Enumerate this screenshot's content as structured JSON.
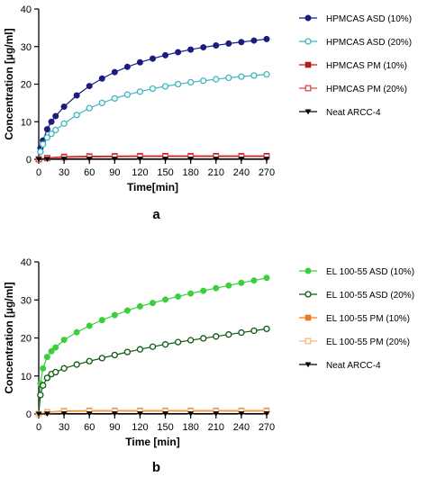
{
  "chart_data": [
    {
      "type": "line",
      "panel_label": "a",
      "xlabel": "Time[min]",
      "ylabel": "Concentration [µg/ml]",
      "xlim": [
        0,
        270
      ],
      "ylim": [
        0,
        40
      ],
      "xticks": [
        0,
        30,
        60,
        90,
        120,
        150,
        180,
        210,
        240,
        270
      ],
      "yticks": [
        0,
        10,
        20,
        30,
        40
      ],
      "grid": false,
      "legend": "right",
      "series": [
        {
          "name": "HPMCAS ASD (10%)",
          "color": "#1c1c80",
          "marker": "circle-filled",
          "x": [
            0,
            2,
            5,
            10,
            15,
            20,
            30,
            45,
            60,
            75,
            90,
            105,
            120,
            135,
            150,
            165,
            180,
            195,
            210,
            225,
            240,
            255,
            270
          ],
          "y": [
            0,
            3,
            5,
            8,
            10,
            11.5,
            14,
            17,
            19.5,
            21.5,
            23.2,
            24.6,
            25.8,
            26.8,
            27.7,
            28.5,
            29.2,
            29.8,
            30.3,
            30.8,
            31.2,
            31.6,
            32
          ]
        },
        {
          "name": "HPMCAS ASD (20%)",
          "color": "#3fb7c1",
          "marker": "circle-open",
          "x": [
            0,
            2,
            5,
            10,
            15,
            20,
            30,
            45,
            60,
            75,
            90,
            105,
            120,
            135,
            150,
            165,
            180,
            195,
            210,
            225,
            240,
            255,
            270
          ],
          "y": [
            0,
            2,
            4,
            5.8,
            6.8,
            7.8,
            9.5,
            11.8,
            13.6,
            15,
            16.2,
            17.2,
            18,
            18.8,
            19.4,
            20,
            20.5,
            20.9,
            21.3,
            21.7,
            22,
            22.3,
            22.6
          ]
        },
        {
          "name": "HPMCAS PM (10%)",
          "color": "#b01c1c",
          "marker": "square-filled",
          "x": [
            0,
            10,
            30,
            60,
            90,
            120,
            150,
            180,
            210,
            240,
            270
          ],
          "y": [
            0,
            0.4,
            0.7,
            0.8,
            0.85,
            0.9,
            0.9,
            0.9,
            0.9,
            0.9,
            0.9
          ]
        },
        {
          "name": "HPMCAS PM (20%)",
          "color": "#e04848",
          "marker": "square-open",
          "x": [
            0,
            10,
            30,
            60,
            90,
            120,
            150,
            180,
            210,
            240,
            270
          ],
          "y": [
            0,
            0.3,
            0.5,
            0.6,
            0.65,
            0.7,
            0.7,
            0.7,
            0.7,
            0.7,
            0.7
          ]
        },
        {
          "name": "Neat ARCC-4",
          "color": "#000000",
          "marker": "triangle-down",
          "x": [
            0,
            10,
            30,
            60,
            90,
            120,
            150,
            180,
            210,
            240,
            270
          ],
          "y": [
            0,
            0.05,
            0.1,
            0.1,
            0.1,
            0.1,
            0.1,
            0.1,
            0.1,
            0.1,
            0.1
          ]
        }
      ]
    },
    {
      "type": "line",
      "panel_label": "b",
      "xlabel": "Time [min]",
      "ylabel": "Concentration [µg/ml]",
      "xlim": [
        0,
        270
      ],
      "ylim": [
        0,
        40
      ],
      "xticks": [
        0,
        30,
        60,
        90,
        120,
        150,
        180,
        210,
        240,
        270
      ],
      "yticks": [
        0,
        10,
        20,
        30,
        40
      ],
      "grid": false,
      "legend": "right",
      "series": [
        {
          "name": "EL 100-55 ASD (10%)",
          "color": "#3ccf3c",
          "marker": "circle-filled",
          "x": [
            0,
            2,
            5,
            10,
            15,
            20,
            30,
            45,
            60,
            75,
            90,
            105,
            120,
            135,
            150,
            165,
            180,
            195,
            210,
            225,
            240,
            255,
            270
          ],
          "y": [
            0,
            8,
            12,
            15,
            16.5,
            17.5,
            19.5,
            21.5,
            23.2,
            24.7,
            26,
            27.2,
            28.3,
            29.2,
            30.1,
            30.9,
            31.7,
            32.4,
            33.1,
            33.8,
            34.5,
            35.1,
            35.8
          ]
        },
        {
          "name": "EL 100-55 ASD (20%)",
          "color": "#0b5a10",
          "marker": "circle-open",
          "x": [
            0,
            2,
            5,
            10,
            15,
            20,
            30,
            45,
            60,
            75,
            90,
            105,
            120,
            135,
            150,
            165,
            180,
            195,
            210,
            225,
            240,
            255,
            270
          ],
          "y": [
            0,
            5,
            7.5,
            9.5,
            10.5,
            11,
            12,
            13,
            13.9,
            14.7,
            15.5,
            16.3,
            17,
            17.7,
            18.3,
            18.9,
            19.4,
            19.9,
            20.4,
            20.9,
            21.4,
            21.9,
            22.4
          ]
        },
        {
          "name": "EL 100-55 PM (10%)",
          "color": "#f07a1a",
          "marker": "square-filled",
          "x": [
            0,
            10,
            30,
            60,
            90,
            120,
            150,
            180,
            210,
            240,
            270
          ],
          "y": [
            0,
            0.5,
            0.8,
            0.9,
            0.9,
            0.9,
            0.9,
            0.9,
            0.9,
            0.9,
            0.9
          ]
        },
        {
          "name": "EL 100-55 PM (20%)",
          "color": "#f5b880",
          "marker": "square-open",
          "x": [
            0,
            10,
            30,
            60,
            90,
            120,
            150,
            180,
            210,
            240,
            270
          ],
          "y": [
            0,
            0.4,
            0.6,
            0.7,
            0.7,
            0.7,
            0.7,
            0.7,
            0.7,
            0.7,
            0.7
          ]
        },
        {
          "name": "Neat ARCC-4",
          "color": "#000000",
          "marker": "triangle-down",
          "x": [
            0,
            10,
            30,
            60,
            90,
            120,
            150,
            180,
            210,
            240,
            270
          ],
          "y": [
            0,
            0.05,
            0.1,
            0.1,
            0.1,
            0.1,
            0.1,
            0.1,
            0.1,
            0.1,
            0.1
          ]
        }
      ]
    }
  ]
}
